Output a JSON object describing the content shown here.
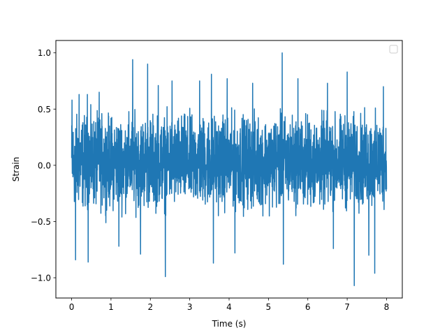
{
  "chart_data": {
    "type": "line",
    "title": "",
    "xlabel": "Time (s)",
    "ylabel": "Strain",
    "xlim": [
      -0.4,
      8.4
    ],
    "ylim": [
      -1.18,
      1.11
    ],
    "x_ticks": [
      0,
      1,
      2,
      3,
      4,
      5,
      6,
      7,
      8
    ],
    "x_tick_labels": [
      "0",
      "1",
      "2",
      "3",
      "4",
      "5",
      "6",
      "7",
      "8"
    ],
    "y_ticks": [
      1.0,
      0.5,
      0.0,
      -0.5,
      -1.0
    ],
    "y_tick_labels": [
      "1.0",
      "0.5",
      "0.0",
      "−0.5",
      "−1.0"
    ],
    "grid": false,
    "legend": {
      "placement": "upper right",
      "entries": []
    },
    "series": [
      {
        "color": "#1f77b4",
        "x_range": [
          0,
          8
        ],
        "typical_range": [
          -0.52,
          0.6
        ],
        "notable_peaks": [
          {
            "x": 0.01,
            "y": 0.58
          },
          {
            "x": 0.19,
            "y": 0.63
          },
          {
            "x": 0.4,
            "y": 0.63
          },
          {
            "x": 0.7,
            "y": 0.65
          },
          {
            "x": 1.55,
            "y": 0.94
          },
          {
            "x": 1.93,
            "y": 0.9
          },
          {
            "x": 2.2,
            "y": 0.71
          },
          {
            "x": 2.55,
            "y": 0.75
          },
          {
            "x": 3.25,
            "y": 0.75
          },
          {
            "x": 3.55,
            "y": 0.81
          },
          {
            "x": 3.95,
            "y": 0.77
          },
          {
            "x": 4.6,
            "y": 0.73
          },
          {
            "x": 5.35,
            "y": 1.0
          },
          {
            "x": 5.75,
            "y": 0.77
          },
          {
            "x": 6.5,
            "y": 0.73
          },
          {
            "x": 7.0,
            "y": 0.83
          },
          {
            "x": 7.7,
            "y": 0.77
          },
          {
            "x": 7.92,
            "y": 0.7
          }
        ],
        "notable_troughs": [
          {
            "x": 0.1,
            "y": -0.84
          },
          {
            "x": 0.42,
            "y": -0.86
          },
          {
            "x": 1.2,
            "y": -0.72
          },
          {
            "x": 1.75,
            "y": -0.79
          },
          {
            "x": 2.38,
            "y": -0.99
          },
          {
            "x": 3.6,
            "y": -0.87
          },
          {
            "x": 4.15,
            "y": -0.78
          },
          {
            "x": 5.38,
            "y": -0.88
          },
          {
            "x": 6.65,
            "y": -0.74
          },
          {
            "x": 7.18,
            "y": -1.07
          },
          {
            "x": 7.55,
            "y": -0.8
          },
          {
            "x": 7.7,
            "y": -0.96
          }
        ]
      }
    ]
  }
}
